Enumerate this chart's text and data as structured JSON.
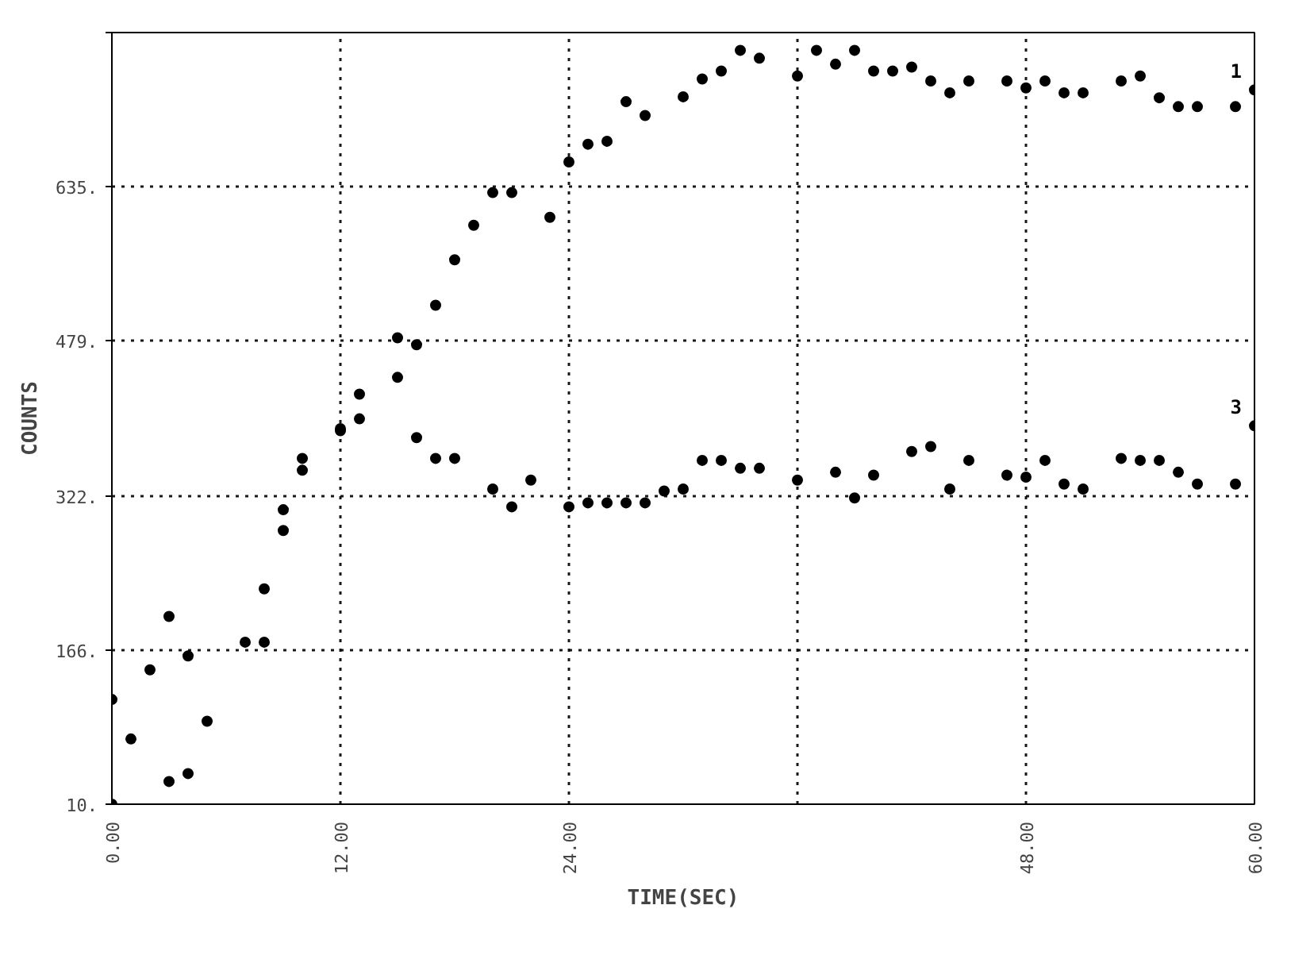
{
  "chart_data": {
    "type": "scatter",
    "xlabel": "TIME(SEC)",
    "ylabel": "COUNTS",
    "xlim": [
      0,
      60
    ],
    "xticks": [
      {
        "value": 0,
        "label": "0.00"
      },
      {
        "value": 12,
        "label": "12.00"
      },
      {
        "value": 24,
        "label": "24.00"
      },
      {
        "value": 36,
        "label": null
      },
      {
        "value": 48,
        "label": "48.00"
      },
      {
        "value": 60,
        "label": "60.00"
      }
    ],
    "ylim": [
      10,
      791
    ],
    "yticks": [
      {
        "value": 10,
        "label": "10."
      },
      {
        "value": 166,
        "label": "166."
      },
      {
        "value": 322,
        "label": "322."
      },
      {
        "value": 479,
        "label": "479."
      },
      {
        "value": 635,
        "label": "635."
      },
      {
        "value": 791,
        "label": null
      }
    ],
    "grid": true,
    "line_style": "dotted",
    "series": [
      {
        "name": "1",
        "color": "#000000",
        "x": [
          0,
          1,
          2,
          3,
          4,
          7,
          8,
          9,
          10,
          12,
          13,
          15,
          16,
          17,
          18,
          19,
          20,
          21,
          23,
          24,
          25,
          26,
          27,
          28,
          30,
          31,
          32,
          33,
          34,
          36,
          37,
          38,
          39,
          40,
          41,
          42,
          43,
          44,
          45,
          47,
          48,
          49,
          50,
          51,
          53,
          54,
          55,
          56,
          57,
          59,
          60
        ],
        "values": [
          116,
          76,
          146,
          200,
          160,
          174,
          228,
          308,
          360,
          390,
          400,
          482,
          475,
          515,
          561,
          596,
          629,
          629,
          604,
          660,
          678,
          681,
          721,
          707,
          726,
          744,
          752,
          773,
          765,
          747,
          773,
          759,
          773,
          752,
          752,
          756,
          742,
          730,
          742,
          742,
          735,
          742,
          730,
          730,
          742,
          747,
          725,
          716,
          716,
          716,
          733
        ]
      },
      {
        "name": "3",
        "color": "#000000",
        "x": [
          0,
          3,
          4,
          5,
          8,
          9,
          10,
          12,
          13,
          15,
          16,
          17,
          18,
          20,
          21,
          22,
          24,
          25,
          26,
          27,
          28,
          29,
          30,
          31,
          32,
          33,
          34,
          36,
          38,
          39,
          40,
          42,
          43,
          44,
          45,
          47,
          48,
          49,
          50,
          51,
          53,
          54,
          55,
          56,
          57,
          59,
          60
        ],
        "values": [
          10,
          33,
          41,
          94,
          174,
          287,
          348,
          388,
          425,
          442,
          381,
          360,
          360,
          329,
          311,
          338,
          311,
          315,
          315,
          315,
          315,
          327,
          329,
          358,
          358,
          350,
          350,
          338,
          346,
          320,
          343,
          367,
          372,
          329,
          358,
          343,
          341,
          358,
          334,
          329,
          360,
          358,
          358,
          346,
          334,
          334,
          393
        ]
      }
    ]
  }
}
